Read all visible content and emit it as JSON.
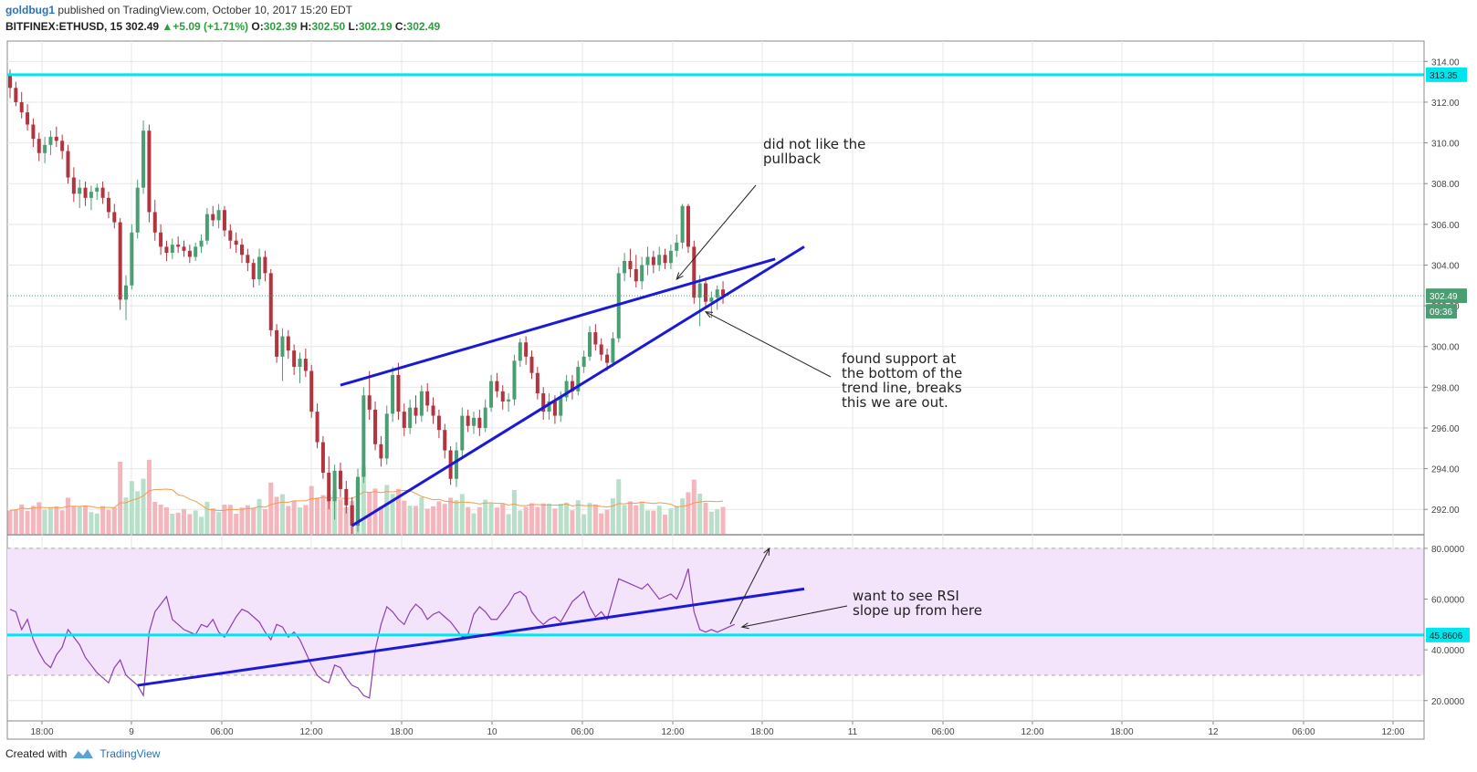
{
  "header": {
    "author": "goldbug1",
    "published_text": "published on TradingView.com, October 10, 2017 15:20 EDT",
    "symbol": "BITFINEX:ETHUSD, 15",
    "last": "302.49",
    "change": "+5.09 (+1.71%)",
    "o_label": "O:",
    "o": "302.39",
    "h_label": "H:",
    "h": "302.50",
    "l_label": "L:",
    "l": "302.19",
    "c_label": "C:",
    "c": "302.49"
  },
  "footer": {
    "created_with": "Created with",
    "brand": "TradingView"
  },
  "annotations": {
    "pullback": "did not like the\npullback",
    "support": "found support at\nthe bottom of the\ntrend line, breaks\nthis we are out.",
    "rsi": "want to see RSI\nslope up from here"
  },
  "colors": {
    "up": "#4b9e72",
    "down": "#b2343f",
    "vol_up": "#b8dfc9",
    "vol_down": "#f4b6bd",
    "level": "#00e5ee",
    "trend": "#1a1ad6",
    "rsi_line": "#8e3fb0",
    "rsi_band": "#f3e3fb",
    "price_tag": "#4b9e72",
    "vol_ma": "#f29b4b"
  },
  "chart_data": [
    {
      "type": "candlestick",
      "title": "BITFINEX:ETHUSD, 15",
      "y_ticks": [
        "292.00",
        "294.00",
        "296.00",
        "298.00",
        "300.00",
        "302.00",
        "304.00",
        "306.00",
        "308.00",
        "310.00",
        "312.00",
        "314.00"
      ],
      "ylim": [
        290.8,
        315
      ],
      "x_ticks": [
        "18:00",
        "9",
        "06:00",
        "12:00",
        "18:00",
        "10",
        "06:00",
        "12:00",
        "18:00",
        "11",
        "06:00",
        "12:00",
        "18:00",
        "12",
        "06:00",
        "12:00"
      ],
      "horizontal_line": 313.35,
      "horizontal_line_label": "313.35",
      "last_price": 302.49,
      "last_price_label": "302.49",
      "countdown_label": "09:36",
      "candles_ohlc": [
        [
          313.4,
          313.6,
          312.2,
          312.7
        ],
        [
          312.7,
          313.0,
          311.8,
          312.0
        ],
        [
          312.0,
          312.5,
          311.2,
          311.5
        ],
        [
          311.5,
          311.9,
          310.6,
          310.9
        ],
        [
          310.9,
          311.2,
          309.8,
          310.2
        ],
        [
          310.2,
          310.5,
          309.1,
          309.5
        ],
        [
          309.5,
          310.3,
          309.0,
          309.9
        ],
        [
          309.9,
          310.6,
          309.4,
          310.3
        ],
        [
          310.3,
          310.8,
          309.8,
          310.1
        ],
        [
          310.1,
          310.4,
          309.2,
          309.6
        ],
        [
          309.6,
          309.9,
          308.0,
          308.3
        ],
        [
          308.3,
          308.8,
          307.1,
          307.5
        ],
        [
          307.5,
          308.2,
          306.8,
          307.8
        ],
        [
          307.8,
          308.1,
          306.9,
          307.3
        ],
        [
          307.3,
          307.9,
          306.7,
          307.6
        ],
        [
          307.6,
          308.0,
          307.2,
          307.8
        ],
        [
          307.8,
          308.1,
          307.0,
          307.3
        ],
        [
          307.3,
          307.6,
          306.3,
          306.6
        ],
        [
          306.6,
          307.0,
          305.8,
          306.1
        ],
        [
          306.1,
          306.3,
          301.8,
          302.3
        ],
        [
          302.3,
          303.5,
          301.3,
          303.0
        ],
        [
          303.0,
          306.0,
          302.8,
          305.6
        ],
        [
          305.6,
          308.2,
          305.3,
          307.8
        ],
        [
          307.8,
          311.1,
          307.5,
          310.6
        ],
        [
          310.6,
          310.9,
          306.1,
          306.6
        ],
        [
          306.6,
          307.2,
          305.2,
          305.6
        ],
        [
          305.6,
          306.0,
          304.5,
          304.9
        ],
        [
          304.9,
          305.2,
          304.2,
          304.6
        ],
        [
          304.6,
          305.3,
          304.3,
          305.0
        ],
        [
          305.0,
          305.4,
          304.6,
          304.9
        ],
        [
          304.9,
          305.2,
          304.4,
          304.7
        ],
        [
          304.7,
          305.0,
          304.1,
          304.4
        ],
        [
          304.4,
          305.1,
          304.2,
          304.9
        ],
        [
          304.9,
          305.5,
          304.6,
          305.2
        ],
        [
          305.2,
          306.8,
          305.0,
          306.5
        ],
        [
          306.5,
          306.9,
          305.9,
          306.2
        ],
        [
          306.2,
          307.0,
          305.8,
          306.7
        ],
        [
          306.7,
          306.9,
          305.4,
          305.7
        ],
        [
          305.7,
          306.0,
          304.8,
          305.2
        ],
        [
          305.2,
          305.6,
          304.6,
          305.0
        ],
        [
          305.0,
          305.3,
          304.1,
          304.5
        ],
        [
          304.5,
          304.8,
          303.7,
          304.1
        ],
        [
          304.1,
          304.3,
          302.9,
          303.3
        ],
        [
          303.3,
          304.8,
          303.0,
          304.4
        ],
        [
          304.4,
          304.7,
          303.2,
          303.6
        ],
        [
          303.6,
          303.8,
          300.5,
          300.8
        ],
        [
          300.8,
          301.1,
          299.2,
          299.5
        ],
        [
          299.5,
          300.9,
          298.3,
          300.5
        ],
        [
          300.5,
          300.8,
          299.4,
          299.8
        ],
        [
          299.8,
          300.1,
          298.6,
          299.0
        ],
        [
          299.0,
          299.7,
          298.2,
          299.4
        ],
        [
          299.4,
          299.9,
          298.5,
          298.8
        ],
        [
          298.8,
          299.1,
          296.5,
          296.8
        ],
        [
          296.8,
          297.2,
          295.0,
          295.3
        ],
        [
          295.3,
          295.6,
          293.5,
          293.8
        ],
        [
          293.8,
          294.6,
          292.0,
          292.4
        ],
        [
          292.4,
          294.2,
          291.5,
          293.9
        ],
        [
          293.9,
          294.3,
          292.6,
          293.0
        ],
        [
          293.0,
          293.4,
          291.8,
          292.2
        ],
        [
          292.2,
          292.6,
          290.8,
          291.2
        ],
        [
          291.2,
          294.0,
          290.9,
          293.6
        ],
        [
          293.6,
          298.0,
          293.3,
          297.6
        ],
        [
          297.6,
          298.8,
          296.4,
          296.9
        ],
        [
          296.9,
          297.3,
          294.9,
          295.2
        ],
        [
          295.2,
          295.6,
          294.1,
          294.5
        ],
        [
          294.5,
          297.1,
          294.2,
          296.7
        ],
        [
          296.7,
          299.0,
          296.3,
          298.6
        ],
        [
          298.6,
          299.2,
          296.4,
          296.8
        ],
        [
          296.8,
          297.2,
          295.6,
          296.0
        ],
        [
          296.0,
          297.4,
          295.7,
          297.0
        ],
        [
          297.0,
          297.6,
          296.2,
          296.6
        ],
        [
          296.6,
          298.1,
          296.3,
          297.8
        ],
        [
          297.8,
          298.2,
          296.8,
          297.1
        ],
        [
          297.1,
          297.5,
          296.2,
          296.6
        ],
        [
          296.6,
          296.9,
          295.5,
          295.9
        ],
        [
          295.9,
          296.2,
          294.5,
          294.9
        ],
        [
          294.9,
          295.1,
          293.2,
          293.5
        ],
        [
          293.5,
          295.3,
          293.1,
          294.9
        ],
        [
          294.9,
          297.0,
          294.6,
          296.6
        ],
        [
          296.6,
          296.9,
          295.8,
          296.1
        ],
        [
          296.1,
          296.8,
          295.7,
          296.5
        ],
        [
          296.5,
          296.9,
          295.6,
          296.0
        ],
        [
          296.0,
          297.4,
          295.8,
          297.0
        ],
        [
          297.0,
          298.6,
          296.8,
          298.3
        ],
        [
          298.3,
          298.7,
          297.5,
          297.8
        ],
        [
          297.8,
          298.1,
          296.9,
          297.3
        ],
        [
          297.3,
          297.7,
          296.8,
          297.4
        ],
        [
          297.4,
          299.6,
          297.1,
          299.3
        ],
        [
          299.3,
          300.4,
          299.0,
          300.2
        ],
        [
          300.2,
          300.5,
          299.1,
          299.5
        ],
        [
          299.5,
          299.8,
          298.4,
          298.7
        ],
        [
          298.7,
          299.0,
          297.4,
          297.7
        ],
        [
          297.7,
          298.0,
          296.4,
          296.8
        ],
        [
          296.8,
          297.7,
          296.4,
          297.3
        ],
        [
          297.3,
          297.6,
          296.2,
          296.6
        ],
        [
          296.6,
          297.8,
          296.3,
          297.5
        ],
        [
          297.5,
          298.6,
          297.3,
          298.3
        ],
        [
          298.3,
          298.6,
          297.4,
          297.8
        ],
        [
          297.8,
          299.3,
          297.6,
          299.0
        ],
        [
          299.0,
          299.8,
          298.7,
          299.5
        ],
        [
          299.5,
          301.0,
          299.3,
          300.7
        ],
        [
          300.7,
          301.1,
          299.8,
          300.1
        ],
        [
          300.1,
          300.4,
          299.3,
          299.6
        ],
        [
          299.6,
          299.9,
          298.8,
          299.2
        ],
        [
          299.2,
          300.7,
          299.0,
          300.4
        ],
        [
          300.4,
          303.9,
          300.2,
          303.6
        ],
        [
          303.6,
          304.6,
          303.2,
          304.2
        ],
        [
          304.2,
          304.8,
          303.4,
          303.8
        ],
        [
          303.8,
          304.5,
          302.9,
          303.2
        ],
        [
          303.2,
          304.4,
          302.8,
          304.0
        ],
        [
          304.0,
          304.9,
          303.5,
          304.4
        ],
        [
          304.4,
          304.7,
          303.6,
          304.0
        ],
        [
          304.0,
          304.9,
          303.7,
          304.5
        ],
        [
          304.5,
          304.8,
          303.8,
          304.1
        ],
        [
          304.1,
          305.0,
          303.8,
          304.7
        ],
        [
          304.7,
          305.5,
          304.4,
          305.1
        ],
        [
          305.1,
          307.0,
          304.8,
          306.9
        ],
        [
          306.9,
          307.0,
          304.6,
          304.9
        ],
        [
          304.9,
          305.2,
          302.1,
          302.4
        ],
        [
          302.4,
          303.5,
          301.0,
          303.1
        ],
        [
          303.1,
          303.4,
          301.9,
          302.2
        ],
        [
          302.2,
          302.7,
          301.4,
          302.4
        ],
        [
          302.4,
          303.0,
          301.8,
          302.8
        ],
        [
          302.8,
          303.2,
          302.1,
          302.5
        ]
      ],
      "volume_ma": "shown"
    },
    {
      "type": "line",
      "title": "RSI",
      "y_ticks": [
        "20.0000",
        "40.0000",
        "60.0000",
        "80.0000"
      ],
      "ylim": [
        12,
        85
      ],
      "band": [
        30,
        80
      ],
      "horizontal_line": 45.8606,
      "horizontal_line_label": "45.8606",
      "values": [
        56,
        55,
        48,
        52,
        44,
        39,
        35,
        33,
        38,
        41,
        48,
        45,
        42,
        37,
        34,
        31,
        29,
        27,
        33,
        36,
        30,
        28,
        26,
        22,
        47,
        55,
        58,
        61,
        52,
        50,
        48,
        47,
        46,
        50,
        49,
        52,
        47,
        45,
        49,
        53,
        56,
        55,
        53,
        51,
        47,
        44,
        50,
        49,
        45,
        47,
        44,
        39,
        34,
        30,
        28,
        27,
        34,
        33,
        29,
        26,
        25,
        22,
        21,
        40,
        50,
        57,
        55,
        52,
        50,
        55,
        58,
        56,
        52,
        54,
        55,
        53,
        51,
        48,
        45,
        46,
        54,
        57,
        55,
        52,
        52,
        55,
        58,
        62,
        63,
        61,
        55,
        52,
        50,
        52,
        53,
        51,
        55,
        59,
        61,
        63,
        57,
        53,
        55,
        52,
        60,
        68,
        67,
        66,
        65,
        64,
        66,
        63,
        60,
        61,
        62,
        60,
        65,
        72,
        55,
        48,
        47,
        48,
        47,
        48,
        49,
        50
      ]
    }
  ]
}
